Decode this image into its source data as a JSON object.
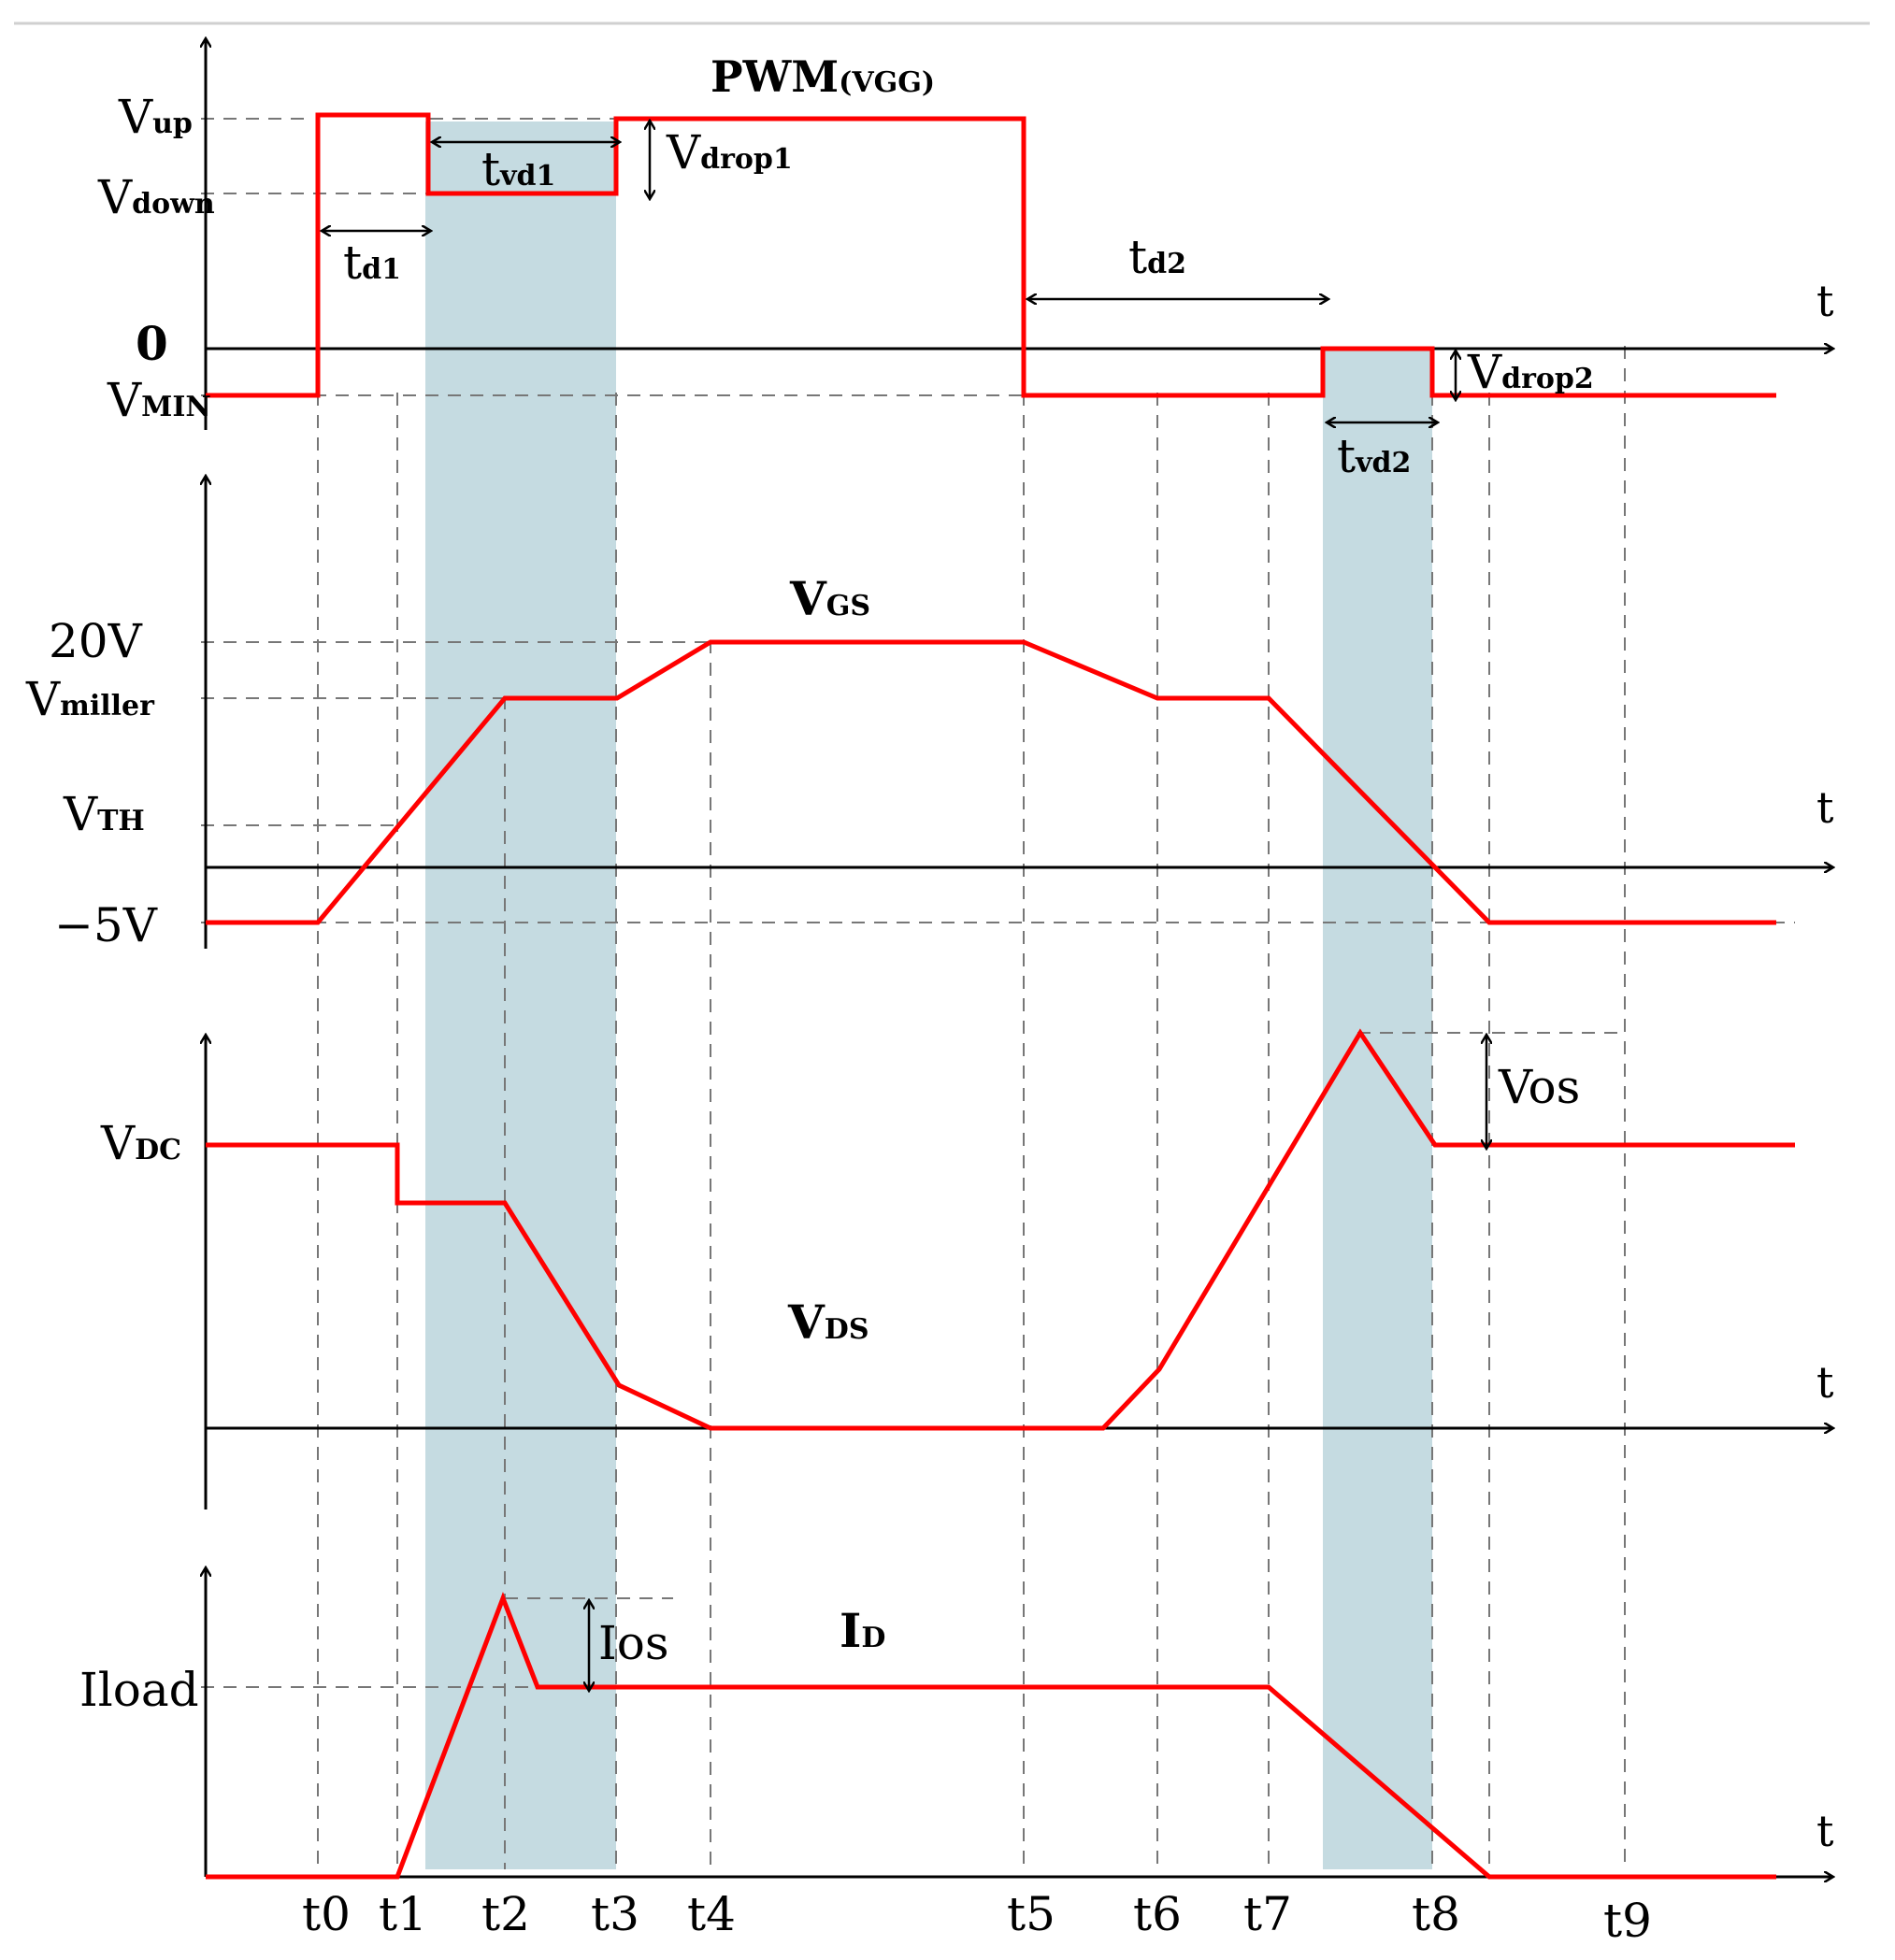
{
  "title": "PWM(VGG)",
  "colors": {
    "waveform": "#ff0000",
    "shade": "#c5dbe1",
    "axis": "#000000",
    "grid": "#777777"
  },
  "time_labels": [
    "t0",
    "t1",
    "t2",
    "t3",
    "t4",
    "t5",
    "t6",
    "t7",
    "t8",
    "t9"
  ],
  "axis_t": "t",
  "pwm": {
    "label_main": "PWM",
    "label_sub": "(VGG)",
    "y_labels": {
      "vup_main": "V",
      "vup_sub": "up",
      "vdown_main": "V",
      "vdown_sub": "down",
      "zero": "0",
      "vmin_main": "V",
      "vmin_sub": "MIN"
    },
    "annotations": {
      "td1_main": "t",
      "td1_sub": "d1",
      "tvd1_main": "t",
      "tvd1_sub": "vd1",
      "vdrop1_main": "V",
      "vdrop1_sub": "drop1",
      "td2_main": "t",
      "td2_sub": "d2",
      "vdrop2_main": "V",
      "vdrop2_sub": "drop2",
      "tvd2_main": "t",
      "tvd2_sub": "vd2"
    }
  },
  "vgs": {
    "label_main": "V",
    "label_sub": "GS",
    "y_labels": {
      "v20": "20V",
      "vmiller_main": "V",
      "vmiller_sub": "miller",
      "vth_main": "V",
      "vth_sub": "TH",
      "vneg5": "−5V"
    }
  },
  "vds": {
    "label_main": "V",
    "label_sub": "DS",
    "y_labels": {
      "vdc_main": "V",
      "vdc_sub": "DC"
    },
    "annotations": {
      "vos": "Vos"
    }
  },
  "id": {
    "label_main": "I",
    "label_sub": "D",
    "y_labels": {
      "iload": "Iload"
    },
    "annotations": {
      "ios": "Ios"
    }
  }
}
